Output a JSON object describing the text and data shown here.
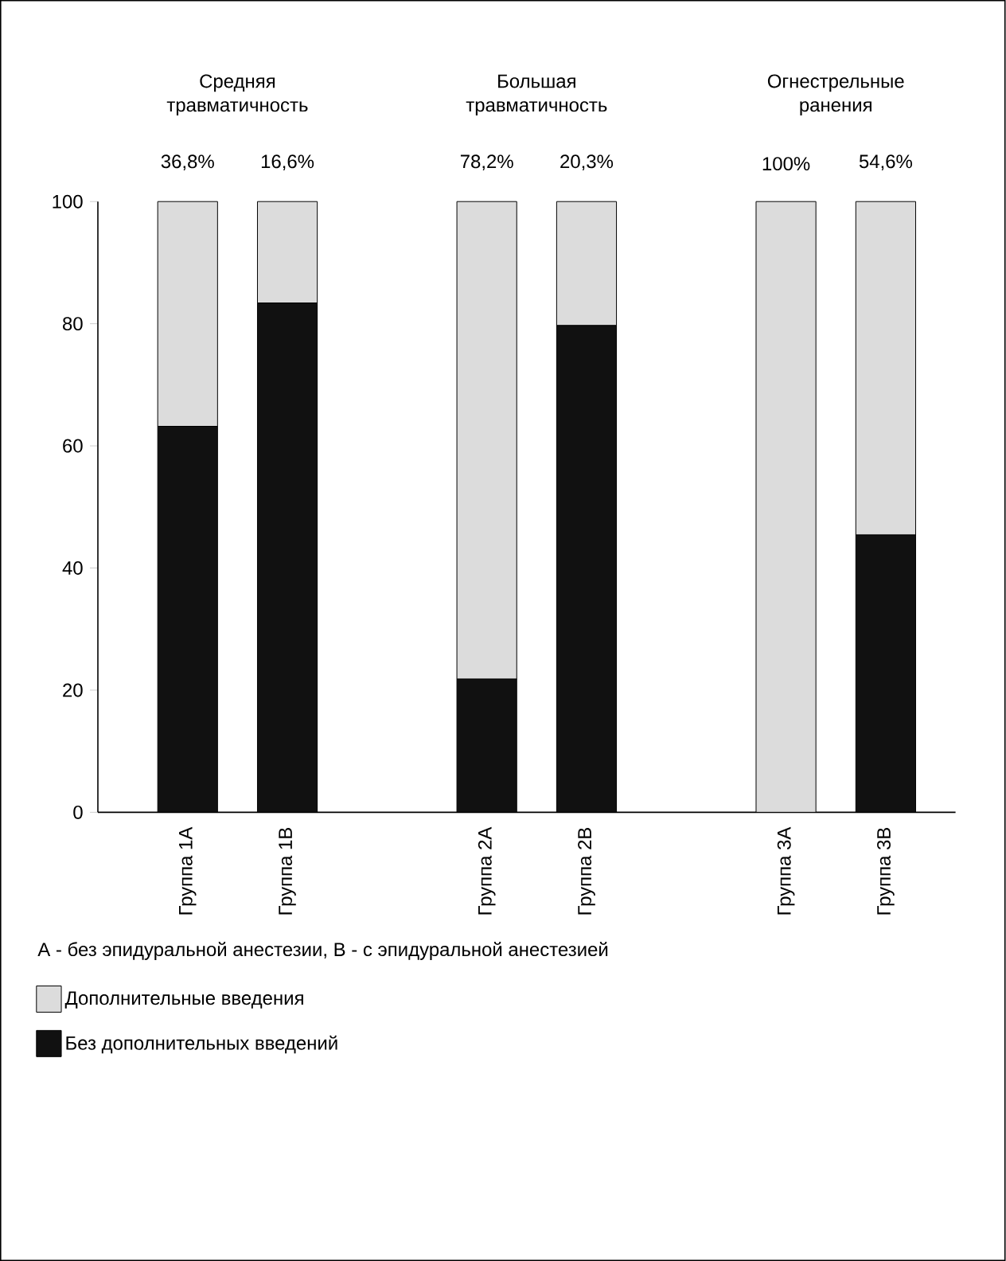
{
  "chart_data": {
    "type": "bar",
    "stacked": true,
    "categories": [
      "Группа 1А",
      "Группа 1В",
      null,
      "Группа 2А",
      "Группа 2В",
      null,
      "Группа 3А",
      "Группа 3В"
    ],
    "series": [
      {
        "name": "Без дополнительных введений",
        "color": "#111111",
        "values": [
          63.2,
          83.4,
          null,
          21.8,
          79.7,
          null,
          0,
          45.4
        ]
      },
      {
        "name": "Дополнительные введения",
        "color": "#dcdcdc",
        "values": [
          36.8,
          16.6,
          null,
          78.2,
          20.3,
          null,
          100,
          54.6
        ],
        "value_labels": [
          "36,8%",
          "16,6%",
          null,
          "78,2%",
          "20,3%",
          null,
          "100%",
          "54,6%"
        ]
      }
    ],
    "ylim": [
      0,
      100
    ],
    "yticks": [
      0,
      20,
      40,
      60,
      80,
      100
    ],
    "legend": "bottom",
    "annotations": [
      "Средняя травматичность",
      "Большая травматичность",
      "Огнестрельные ранения",
      "A - без эпидуральной анестезии, B - с эпидуральной анестезией"
    ]
  }
}
